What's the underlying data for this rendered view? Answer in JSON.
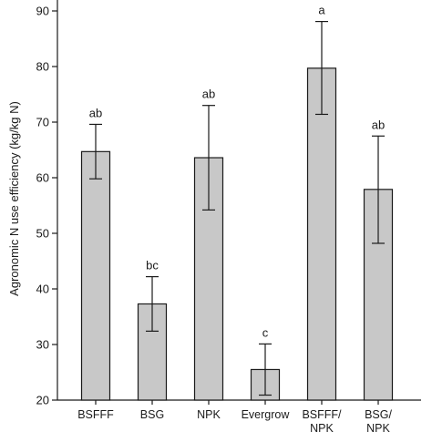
{
  "chart_data": {
    "type": "bar",
    "ylabel": "Agronomic N use efficiency (kg/kg N)",
    "xlabel": "",
    "ylim": [
      20,
      100
    ],
    "yticks": [
      20,
      30,
      40,
      50,
      60,
      70,
      80,
      90
    ],
    "grid": false,
    "categories": [
      "BSFFF",
      "BSG",
      "NPK",
      "Evergrow",
      "BSFFF/NPK",
      "BSG/NPK"
    ],
    "values": [
      64.7,
      37.3,
      63.6,
      25.5,
      79.7,
      57.9
    ],
    "error_low": [
      59.8,
      32.4,
      54.2,
      20.9,
      71.4,
      48.2
    ],
    "error_high": [
      69.6,
      42.2,
      73.0,
      30.1,
      88.1,
      67.5
    ],
    "significance": [
      "ab",
      "bc",
      "ab",
      "c",
      "a",
      "ab"
    ],
    "colors": {
      "bar_fill": "#c8c8c8",
      "bar_stroke": "#1a1a1a",
      "axis": "#1a1a1a"
    }
  }
}
